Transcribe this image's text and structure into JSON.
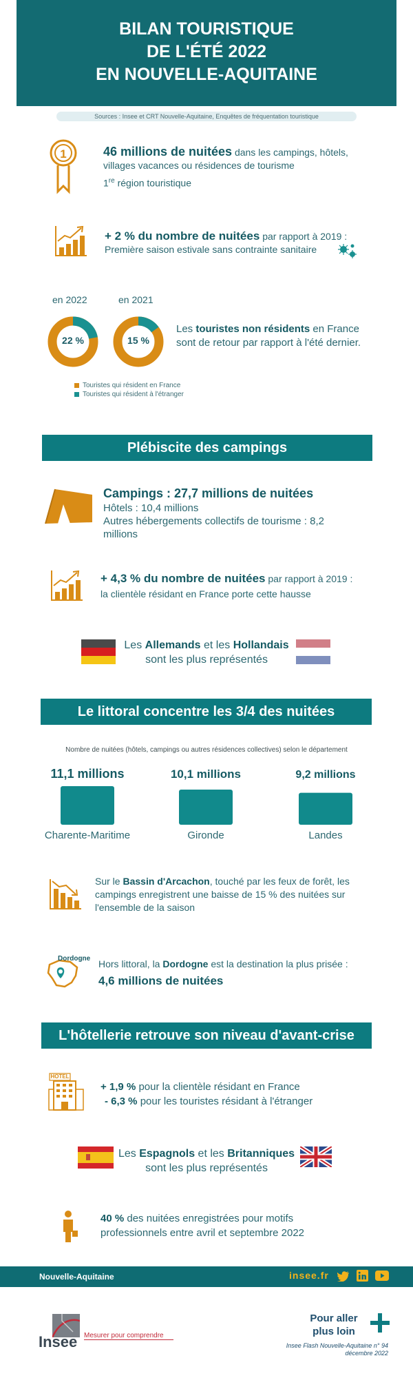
{
  "header": {
    "line1": "BILAN TOURISTIQUE",
    "line2": "DE L'ÉTÉ 2022",
    "line3": "EN NOUVELLE-AQUITAINE"
  },
  "sources": "Sources : Insee et CRT Nouvelle-Aquitaine, Enquêtes de fréquentation touristique",
  "stat1": {
    "highlight": "46 millions de nuitées",
    "rest": " dans les campings, hôtels, villages vacances ou résidences de tourisme",
    "rank_num": "1",
    "rank_sup": "re",
    "rank_text": " région touristique"
  },
  "stat2": {
    "highlight": "+ 2 % du nombre de nuitées",
    "rest": " par rapport à 2019 :",
    "line2": "Première saison estivale sans contrainte sanitaire"
  },
  "donuts": {
    "year1": "en 2022",
    "year2": "en 2021",
    "pct1": "22 %",
    "pct2": "15 %",
    "value1": 22,
    "value2": 15,
    "text_pre": "Les ",
    "text_bold": "touristes non résidents",
    "text_post": " en France sont de retour par rapport à l'été dernier."
  },
  "legend": {
    "item1": "Touristes qui résident en France",
    "item2": "Touristes qui résident à l'étranger"
  },
  "colors": {
    "orange": "#d98c16",
    "teal": "#1a9191",
    "band": "#0d7b80",
    "header": "#136b72"
  },
  "camp": {
    "title": "Plébiscite des campings",
    "headline": "Campings : 27,7 millions de nuitées",
    "hotels": "Hôtels : 10,4 millions",
    "others": "Autres hébergements collectifs de tourisme : 8,2 millions",
    "growth_bold": "+ 4,3 % du nombre de nuitées",
    "growth_rest": " par rapport à 2019 :",
    "growth_line2": "la clientèle résidant en France porte cette hausse",
    "nat_pre": "Les ",
    "nat_b1": "Allemands",
    "nat_mid": " et les ",
    "nat_b2": "Hollandais",
    "nat_line2": "sont les plus représentés"
  },
  "littoral": {
    "title": "Le littoral concentre les 3/4 des nuitées",
    "subtitle": "Nombre de nuitées (hôtels, campings ou autres résidences collectives) selon le département",
    "arcachon_pre": "Sur le ",
    "arcachon_bold": "Bassin d'Arcachon",
    "arcachon_post": ", touché par les feux de forêt, les campings enregistrent une baisse de 15 % des nuitées sur l'ensemble de la saison",
    "dordogne_label": "Dordogne",
    "dordogne_pre": "Hors littoral, la ",
    "dordogne_bold": "Dordogne",
    "dordogne_post": " est la destination la plus prisée :",
    "dordogne_value": "4,6 millions de nuitées"
  },
  "chart_data": {
    "type": "bar",
    "categories": [
      "Charente-Maritime",
      "Gironde",
      "Landes"
    ],
    "value_labels": [
      "11,1 millions",
      "10,1 millions",
      "9,2 millions"
    ],
    "values": [
      11.1,
      10.1,
      9.2
    ],
    "title": "Nombre de nuitées (hôtels, campings ou autres résidences collectives) selon le département"
  },
  "hotel": {
    "title": "L'hôtellerie retrouve son niveau d'avant-crise",
    "sign_label": "HOTEL",
    "l1_bold": "+ 1,9 %",
    "l1_rest": " pour la clientèle résidant en France",
    "l2_bold": "- 6,3 %",
    "l2_rest": " pour les touristes résidant à l'étranger",
    "nat_pre": "Les ",
    "nat_b1": "Espagnols",
    "nat_mid": " et les ",
    "nat_b2": "Britanniques",
    "nat_line2": "sont les plus représentés",
    "pro_bold": "40 %",
    "pro_rest": " des nuitées enregistrées pour motifs professionnels entre avril et septembre 2022"
  },
  "footer": {
    "region": "Nouvelle-Aquitaine",
    "site": "insee.fr",
    "social": [
      "twitter-icon",
      "linkedin-icon",
      "youtube-icon"
    ],
    "logo_text": "Insee",
    "tagline": "Mesurer pour comprendre",
    "more1": "Pour aller",
    "more2": "plus loin",
    "ref1": "Insee Flash Nouvelle-Aquitaine n° 94",
    "ref2": "décembre 2022"
  }
}
